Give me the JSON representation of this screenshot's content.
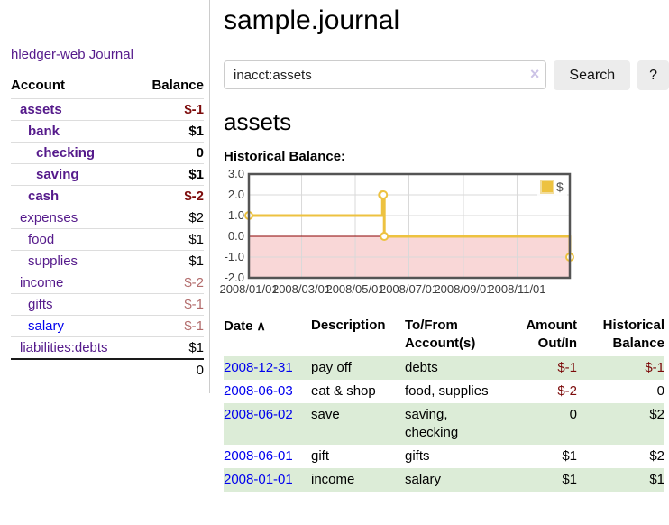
{
  "sidebar": {
    "app_title": "hledger-web",
    "journal_label": "Journal",
    "account_header": "Account",
    "balance_header": "Balance",
    "accounts": [
      {
        "name": "assets",
        "balance": "$-1",
        "depth": 0,
        "bold": true,
        "negative": "dark"
      },
      {
        "name": "bank",
        "balance": "$1",
        "depth": 1,
        "bold": true,
        "negative": null
      },
      {
        "name": "checking",
        "balance": "0",
        "depth": 2,
        "bold": true,
        "negative": null
      },
      {
        "name": "saving",
        "balance": "$1",
        "depth": 2,
        "bold": true,
        "negative": null
      },
      {
        "name": "cash",
        "balance": "$-2",
        "depth": 1,
        "bold": true,
        "negative": "dark"
      },
      {
        "name": "expenses",
        "balance": "$2",
        "depth": 0,
        "bold": false,
        "negative": null
      },
      {
        "name": "food",
        "balance": "$1",
        "depth": 1,
        "bold": false,
        "negative": null
      },
      {
        "name": "supplies",
        "balance": "$1",
        "depth": 1,
        "bold": false,
        "negative": null
      },
      {
        "name": "income",
        "balance": "$-2",
        "depth": 0,
        "bold": false,
        "negative": "light"
      },
      {
        "name": "gifts",
        "balance": "$-1",
        "depth": 1,
        "bold": false,
        "negative": "light"
      },
      {
        "name": "salary",
        "balance": "$-1",
        "depth": 1,
        "bold": false,
        "negative": "light",
        "unvisited": true
      },
      {
        "name": "liabilities:debts",
        "balance": "$1",
        "depth": 0,
        "bold": false,
        "negative": null
      }
    ],
    "total": "0"
  },
  "main": {
    "title": "sample.journal",
    "search": {
      "value": "inacct:assets",
      "clear_icon": "×",
      "search_label": "Search",
      "help_label": "?"
    },
    "account_heading": "assets",
    "chart_label": "Historical Balance:"
  },
  "chart_data": {
    "type": "line",
    "title": "Historical Balance:",
    "legend": [
      "$"
    ],
    "legend_position": "top-right",
    "series": [
      {
        "name": "$",
        "color": "#edc240",
        "step": true,
        "points": [
          [
            "2008-01-01",
            1
          ],
          [
            "2008-06-01",
            2
          ],
          [
            "2008-06-02",
            2
          ],
          [
            "2008-06-03",
            0
          ],
          [
            "2008-12-31",
            -1
          ]
        ]
      }
    ],
    "x_ticks": [
      "2008/01/01",
      "2008/03/01",
      "2008/05/01",
      "2008/07/01",
      "2008/09/01",
      "2008/11/01"
    ],
    "y_ticks": [
      3.0,
      2.0,
      1.0,
      0.0,
      -1.0,
      -2.0
    ],
    "xlim": [
      "2008-01-01",
      "2008-12-31"
    ],
    "ylim": [
      -2,
      3
    ],
    "grid": true,
    "negative_region_color": "#f9d7d7",
    "zero_line_color": "#8b0000",
    "border_color": "#545454"
  },
  "register": {
    "headers": {
      "date": "Date",
      "sort_icon": "∧",
      "description": "Description",
      "accounts": "To/From Account(s)",
      "amount": "Amount Out/In",
      "balance": "Historical Balance"
    },
    "rows": [
      {
        "date": "2008-12-31",
        "description": "pay off",
        "accounts": "debts",
        "amount": "$-1",
        "balance": "$-1",
        "amount_negative": true,
        "balance_negative": true
      },
      {
        "date": "2008-06-03",
        "description": "eat & shop",
        "accounts": "food, supplies",
        "amount": "$-2",
        "balance": "0",
        "amount_negative": true,
        "balance_negative": false
      },
      {
        "date": "2008-06-02",
        "description": "save",
        "accounts": "saving, checking",
        "amount": "0",
        "balance": "$2",
        "amount_negative": false,
        "balance_negative": false
      },
      {
        "date": "2008-06-01",
        "description": "gift",
        "accounts": "gifts",
        "amount": "$1",
        "balance": "$2",
        "amount_negative": false,
        "balance_negative": false
      },
      {
        "date": "2008-01-01",
        "description": "income",
        "accounts": "salary",
        "amount": "$1",
        "balance": "$1",
        "amount_negative": false,
        "balance_negative": false
      }
    ]
  },
  "colors": {
    "link_blue": "#0000ee",
    "visited_purple": "#551a8b",
    "negative_dark": "#7c0b0b",
    "negative_light": "#b26b6b",
    "stripe_green": "#dcecd7",
    "series_gold": "#edc240"
  }
}
